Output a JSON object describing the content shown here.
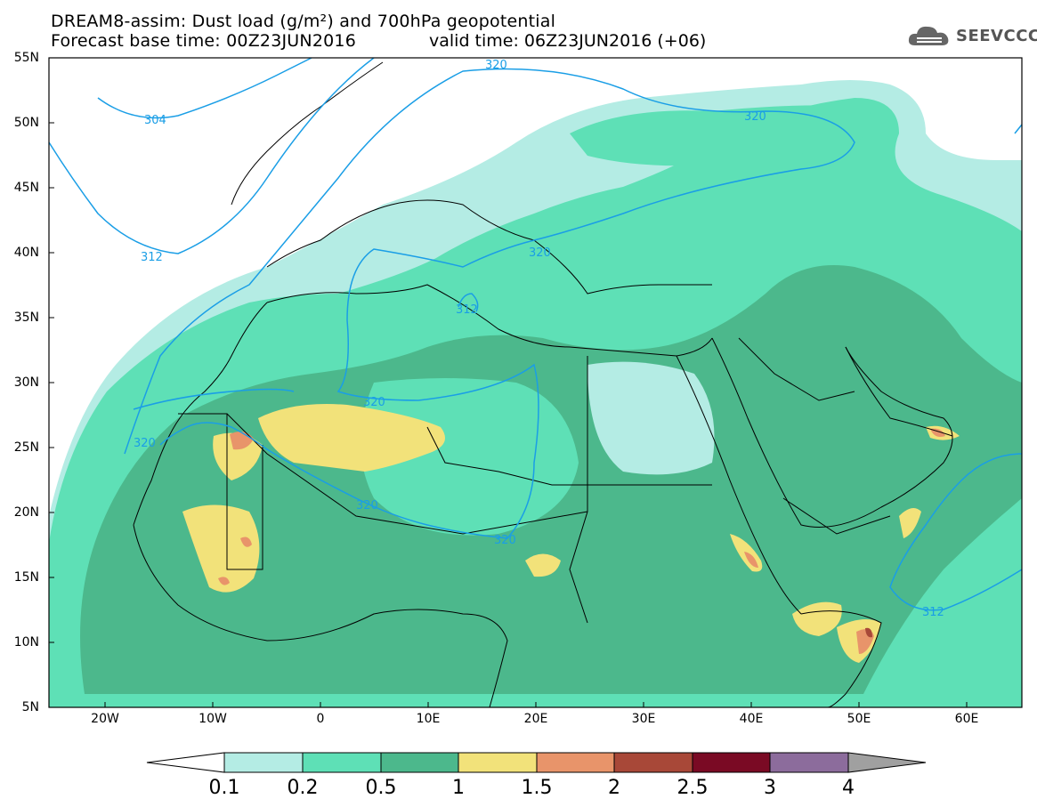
{
  "header": {
    "title_line1": "DREAM8-assim: Dust load (g/m²) and 700hPa geopotential",
    "title_line2_left": "Forecast base time: 00Z23JUN2016",
    "title_line2_right": "valid time: 06Z23JUN2016 (+06)"
  },
  "logo": {
    "text": "SEEVCCC",
    "icon": "cloud-logo-icon"
  },
  "map": {
    "lat_labels": [
      "55N",
      "50N",
      "45N",
      "40N",
      "35N",
      "30N",
      "25N",
      "20N",
      "15N",
      "10N",
      "5N"
    ],
    "lon_labels": [
      "20W",
      "10W",
      "0",
      "10E",
      "20E",
      "30E",
      "40E",
      "50E",
      "60E"
    ],
    "contour_labels": [
      "320",
      "304",
      "320",
      "312",
      "320",
      "312",
      "320",
      "320",
      "320",
      "320",
      "312"
    ],
    "colors": {
      "land_bg": "#ffffff",
      "geopotential_line": "#1a9ee6",
      "border_line": "#000000"
    }
  },
  "colorbar": {
    "labels": [
      "0.1",
      "0.2",
      "0.5",
      "1",
      "1.5",
      "2",
      "2.5",
      "3",
      "4"
    ],
    "colors": [
      "#ffffff",
      "#b4ece4",
      "#5ee0b6",
      "#4cb88c",
      "#f2e27a",
      "#e8946a",
      "#a84838",
      "#7a0a24",
      "#8c6c9c",
      "#a0a0a0"
    ]
  }
}
